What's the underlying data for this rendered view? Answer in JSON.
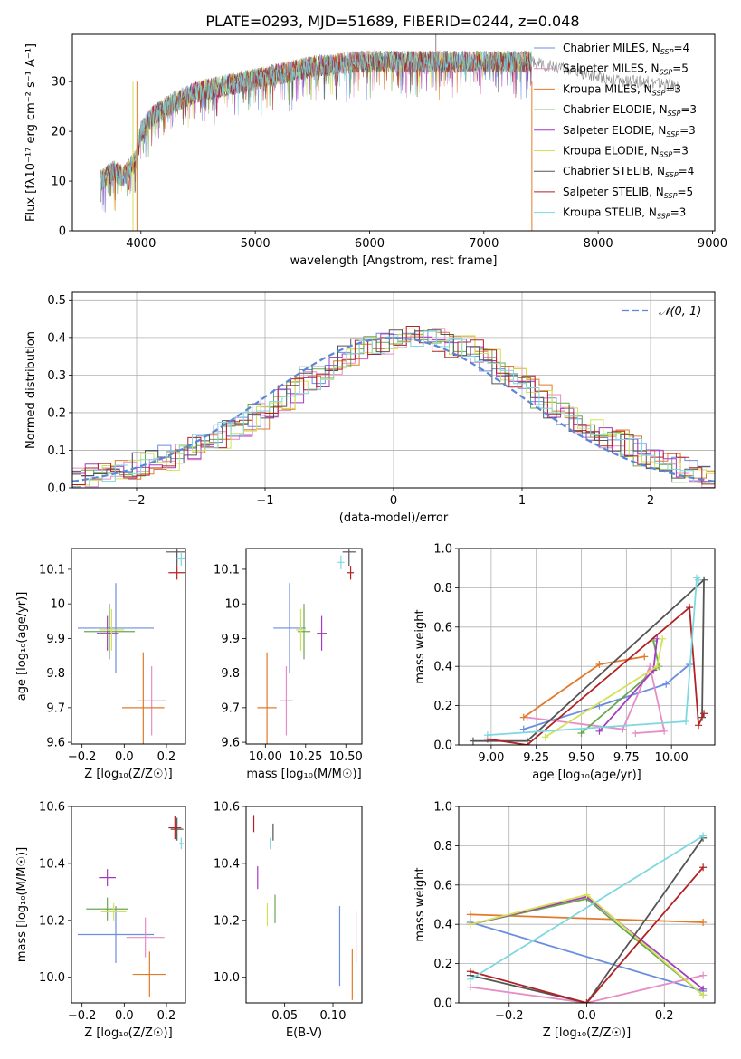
{
  "title": "PLATE=0293, MJD=51689, FIBERID=0244, z=0.048",
  "colors": {
    "Chabrier MILES": "#6a8ee0",
    "Salpeter MILES": "#e68cc6",
    "Kroupa MILES": "#e07b2a",
    "Chabrier ELODIE": "#6aa84f",
    "Salpeter ELODIE": "#a23bbd",
    "Kroupa ELODIE": "#d4e157",
    "Chabrier STELIB": "#555555",
    "Salpeter STELIB": "#b22222",
    "Kroupa STELIB": "#7fd8e0"
  },
  "chart_data": [
    {
      "type": "line",
      "xlabel": "wavelength [Angstrom, rest frame]",
      "ylabel": "Flux [fλ10⁻¹⁷ erg cm⁻² s⁻¹ A⁻¹]",
      "xlim": [
        3400,
        9020
      ],
      "ylim": [
        0,
        39.5
      ],
      "xticks": [
        4000,
        5000,
        6000,
        7000,
        8000,
        9000
      ],
      "yticks": [
        0,
        10,
        20,
        30
      ],
      "legend": "top-right",
      "legend_entries": [
        "Chabrier MILES, N_SSP=4",
        "Salpeter MILES, N_SSP=5",
        "Kroupa MILES, N_SSP=3",
        "Chabrier ELODIE, N_SSP=3",
        "Salpeter ELODIE, N_SSP=3",
        "Kroupa ELODIE, N_SSP=3",
        "Chabrier STELIB, N_SSP=4",
        "Salpeter STELIB, N_SSP=5",
        "Kroupa STELIB, N_SSP=3"
      ],
      "spectrum_trend": {
        "x": [
          3650,
          3750,
          3850,
          3950,
          4000,
          4100,
          4300,
          4500,
          4700,
          4900,
          5100,
          5300,
          5500,
          5700,
          5900,
          6100,
          6300,
          6500,
          6700,
          6900,
          7100,
          7300,
          7420
        ],
        "y": [
          10,
          12,
          11,
          14,
          20,
          23,
          26,
          28,
          29,
          30,
          31,
          32,
          33,
          33.5,
          34,
          34,
          34,
          34,
          34,
          34,
          34,
          34,
          34
        ]
      },
      "spectrum_extension": {
        "x": [
          7420,
          7600,
          7800,
          8000,
          8200,
          8400,
          8600,
          8700
        ],
        "y": [
          34,
          33,
          32,
          31,
          30,
          30,
          29.5,
          29
        ]
      },
      "spectrum_spikes": {
        "x": [
          3930,
          3965,
          5300,
          6580,
          6800,
          7420
        ],
        "y": [
          0,
          0,
          24,
          39.5,
          0,
          0
        ]
      },
      "grid": false
    },
    {
      "type": "histogram",
      "xlabel": "(data-model)/error",
      "ylabel": "Normed distribution",
      "xlim": [
        -2.5,
        2.5
      ],
      "ylim": [
        0,
        0.52
      ],
      "xticks": [
        -2,
        -1,
        0,
        1,
        2
      ],
      "yticks": [
        0,
        0.1,
        0.2,
        0.3,
        0.4,
        0.5
      ],
      "legend": "top-right",
      "legend_entry": "𝒩(0, 1)",
      "bin_edges_start": -2.5,
      "bin_width": 0.1,
      "reference": [
        0.02,
        0.03,
        0.03,
        0.04,
        0.05,
        0.06,
        0.07,
        0.08,
        0.09,
        0.11,
        0.13,
        0.14,
        0.16,
        0.17,
        0.19,
        0.21,
        0.24,
        0.26,
        0.29,
        0.3,
        0.33,
        0.35,
        0.37,
        0.38,
        0.39,
        0.4,
        0.4,
        0.4,
        0.39,
        0.38,
        0.37,
        0.36,
        0.34,
        0.31,
        0.29,
        0.27,
        0.24,
        0.22,
        0.2,
        0.18,
        0.16,
        0.14,
        0.12,
        0.11,
        0.09,
        0.07,
        0.06,
        0.05,
        0.04,
        0.03
      ],
      "normal_curve": "N(0,1)",
      "grid": true
    },
    {
      "type": "errorbar",
      "xlabel": "Z [log₁₀(Z/Z☉)]",
      "ylabel": "age  [log₁₀(age/yr)]",
      "xlim": [
        -0.25,
        0.29
      ],
      "ylim": [
        9.595,
        10.16
      ],
      "xticks": [
        -0.2,
        0,
        0.2
      ],
      "xtick_labels": [
        "−0.2",
        "0.0",
        "0.2"
      ],
      "yticks": [
        9.6,
        9.7,
        9.8,
        9.9,
        10.0,
        10.1
      ],
      "points": [
        {
          "model": "Chabrier MILES",
          "x": -0.04,
          "xerr": 0.18,
          "y": 9.93,
          "yerr": 0.13
        },
        {
          "model": "Salpeter MILES",
          "x": 0.13,
          "xerr": 0.07,
          "y": 9.72,
          "yerr": 0.1
        },
        {
          "model": "Kroupa MILES",
          "x": 0.09,
          "xerr": 0.1,
          "y": 9.7,
          "yerr": 0.16
        },
        {
          "model": "Chabrier ELODIE",
          "x": -0.07,
          "xerr": 0.12,
          "y": 9.92,
          "yerr": 0.08
        },
        {
          "model": "Salpeter ELODIE",
          "x": -0.08,
          "xerr": 0.05,
          "y": 9.915,
          "yerr": 0.05
        },
        {
          "model": "Kroupa ELODIE",
          "x": -0.06,
          "xerr": 0.06,
          "y": 9.925,
          "yerr": 0.06
        },
        {
          "model": "Chabrier STELIB",
          "x": 0.25,
          "xerr": 0.05,
          "y": 10.15,
          "yerr": 0.04
        },
        {
          "model": "Salpeter STELIB",
          "x": 0.25,
          "xerr": 0.04,
          "y": 10.09,
          "yerr": 0.02
        },
        {
          "model": "Kroupa STELIB",
          "x": 0.27,
          "xerr": 0.02,
          "y": 10.13,
          "yerr": 0.02
        }
      ]
    },
    {
      "type": "errorbar",
      "xlabel": "mass [log₁₀(M/M☉)]",
      "ylabel": "",
      "xlim": [
        9.88,
        10.6
      ],
      "ylim": [
        9.595,
        10.16
      ],
      "xticks": [
        10.0,
        10.25,
        10.5
      ],
      "xtick_labels": [
        "10.00",
        "10.25",
        "10.50"
      ],
      "yticks": [
        9.6,
        9.7,
        9.8,
        9.9,
        10.0,
        10.1
      ],
      "points": [
        {
          "model": "Chabrier MILES",
          "x": 10.15,
          "xerr": 0.1,
          "y": 9.93,
          "yerr": 0.13
        },
        {
          "model": "Salpeter MILES",
          "x": 10.13,
          "xerr": 0.04,
          "y": 9.72,
          "yerr": 0.1
        },
        {
          "model": "Kroupa MILES",
          "x": 10.01,
          "xerr": 0.06,
          "y": 9.7,
          "yerr": 0.16
        },
        {
          "model": "Chabrier ELODIE",
          "x": 10.24,
          "xerr": 0.04,
          "y": 9.92,
          "yerr": 0.08
        },
        {
          "model": "Salpeter ELODIE",
          "x": 10.35,
          "xerr": 0.03,
          "y": 9.915,
          "yerr": 0.05
        },
        {
          "model": "Kroupa ELODIE",
          "x": 10.22,
          "xerr": 0.03,
          "y": 9.925,
          "yerr": 0.06
        },
        {
          "model": "Chabrier STELIB",
          "x": 10.52,
          "xerr": 0.04,
          "y": 10.15,
          "yerr": 0.04
        },
        {
          "model": "Salpeter STELIB",
          "x": 10.53,
          "xerr": 0.02,
          "y": 10.09,
          "yerr": 0.02
        },
        {
          "model": "Kroupa STELIB",
          "x": 10.47,
          "xerr": 0.02,
          "y": 10.12,
          "yerr": 0.02
        }
      ]
    },
    {
      "type": "line",
      "xlabel": "age  [log₁₀(age/yr)]",
      "ylabel": "mass weight",
      "xlim": [
        8.82,
        10.24
      ],
      "ylim": [
        0,
        1.0
      ],
      "xticks": [
        9.0,
        9.25,
        9.5,
        9.75,
        10.0
      ],
      "xtick_labels": [
        "9.00",
        "9.25",
        "9.50",
        "9.75",
        "10.00"
      ],
      "yticks": [
        0,
        0.2,
        0.4,
        0.6,
        0.8,
        1.0
      ],
      "grid": true,
      "series": [
        {
          "model": "Chabrier MILES",
          "x": [
            9.18,
            9.6,
            9.97,
            10.1
          ],
          "y": [
            0.08,
            0.2,
            0.31,
            0.41
          ]
        },
        {
          "model": "Salpeter MILES",
          "x": [
            9.2,
            9.73,
            9.88,
            9.96,
            9.8
          ],
          "y": [
            0.14,
            0.08,
            0.4,
            0.07,
            0.06
          ]
        },
        {
          "model": "Kroupa MILES",
          "x": [
            9.18,
            9.6,
            9.85
          ],
          "y": [
            0.14,
            0.41,
            0.45
          ]
        },
        {
          "model": "Chabrier ELODIE",
          "x": [
            9.5,
            9.93,
            9.9
          ],
          "y": [
            0.06,
            0.4,
            0.53
          ]
        },
        {
          "model": "Salpeter ELODIE",
          "x": [
            9.6,
            9.9,
            9.92
          ],
          "y": [
            0.07,
            0.38,
            0.54
          ]
        },
        {
          "model": "Kroupa ELODIE",
          "x": [
            9.3,
            9.92,
            9.95
          ],
          "y": [
            0.04,
            0.4,
            0.54
          ]
        },
        {
          "model": "Chabrier STELIB",
          "x": [
            8.9,
            9.2,
            10.18,
            10.17
          ],
          "y": [
            0.02,
            0.02,
            0.84,
            0.14
          ]
        },
        {
          "model": "Salpeter STELIB",
          "x": [
            8.98,
            9.2,
            10.1,
            10.15,
            10.18
          ],
          "y": [
            0.03,
            0.0,
            0.7,
            0.1,
            0.16
          ]
        },
        {
          "model": "Kroupa STELIB",
          "x": [
            8.98,
            10.08,
            10.14,
            10.15
          ],
          "y": [
            0.05,
            0.12,
            0.85,
            0.84
          ]
        }
      ]
    },
    {
      "type": "errorbar",
      "xlabel": "Z [log₁₀(Z/Z☉)]",
      "ylabel": "mass [log₁₀(M/M☉)]",
      "xlim": [
        -0.25,
        0.29
      ],
      "ylim": [
        9.91,
        10.6
      ],
      "xticks": [
        -0.2,
        0,
        0.2
      ],
      "xtick_labels": [
        "−0.2",
        "0.0",
        "0.2"
      ],
      "yticks": [
        10.0,
        10.2,
        10.4,
        10.6
      ],
      "yticks_labels": [
        "10.0",
        "10.2",
        "10.4",
        "10.6"
      ],
      "points": [
        {
          "model": "Chabrier MILES",
          "x": -0.04,
          "xerr": 0.18,
          "y": 10.15,
          "yerr": 0.1
        },
        {
          "model": "Salpeter MILES",
          "x": 0.1,
          "xerr": 0.09,
          "y": 10.14,
          "yerr": 0.07
        },
        {
          "model": "Kroupa MILES",
          "x": 0.12,
          "xerr": 0.08,
          "y": 10.01,
          "yerr": 0.08
        },
        {
          "model": "Chabrier ELODIE",
          "x": -0.08,
          "xerr": 0.1,
          "y": 10.24,
          "yerr": 0.04
        },
        {
          "model": "Salpeter ELODIE",
          "x": -0.08,
          "xerr": 0.04,
          "y": 10.35,
          "yerr": 0.03
        },
        {
          "model": "Kroupa ELODIE",
          "x": -0.05,
          "xerr": 0.06,
          "y": 10.23,
          "yerr": 0.03
        },
        {
          "model": "Chabrier STELIB",
          "x": 0.25,
          "xerr": 0.03,
          "y": 10.52,
          "yerr": 0.04
        },
        {
          "model": "Salpeter STELIB",
          "x": 0.24,
          "xerr": 0.03,
          "y": 10.525,
          "yerr": 0.04
        },
        {
          "model": "Kroupa STELIB",
          "x": 0.27,
          "xerr": 0.01,
          "y": 10.47,
          "yerr": 0.02
        }
      ]
    },
    {
      "type": "errorbar",
      "xlabel": "E(B-V)",
      "ylabel": "",
      "xlim": [
        0.01,
        0.13
      ],
      "ylim": [
        9.91,
        10.6
      ],
      "xticks": [
        0.05,
        0.1
      ],
      "xtick_labels": [
        "0.05",
        "0.10"
      ],
      "yticks": [
        10.0,
        10.2,
        10.4,
        10.6
      ],
      "yticks_labels": [
        "10.0",
        "10.2",
        "10.4",
        "10.6"
      ],
      "points": [
        {
          "model": "Chabrier MILES",
          "x": 0.107,
          "y": 10.11,
          "yerr": 0.14
        },
        {
          "model": "Salpeter MILES",
          "x": 0.124,
          "y": 10.14,
          "yerr": 0.09
        },
        {
          "model": "Kroupa MILES",
          "x": 0.12,
          "y": 10.01,
          "yerr": 0.09
        },
        {
          "model": "Chabrier ELODIE",
          "x": 0.04,
          "y": 10.24,
          "yerr": 0.05
        },
        {
          "model": "Salpeter ELODIE",
          "x": 0.022,
          "y": 10.35,
          "yerr": 0.04
        },
        {
          "model": "Kroupa ELODIE",
          "x": 0.032,
          "y": 10.22,
          "yerr": 0.04
        },
        {
          "model": "Chabrier STELIB",
          "x": 0.038,
          "y": 10.51,
          "yerr": 0.03
        },
        {
          "model": "Salpeter STELIB",
          "x": 0.018,
          "y": 10.54,
          "yerr": 0.03
        },
        {
          "model": "Kroupa STELIB",
          "x": 0.035,
          "y": 10.47,
          "yerr": 0.02
        }
      ]
    },
    {
      "type": "line",
      "xlabel": "Z [log₁₀(Z/Z☉)]",
      "ylabel": "mass weight",
      "xlim": [
        -0.33,
        0.33
      ],
      "ylim": [
        0,
        1.0
      ],
      "xticks": [
        -0.2,
        0,
        0.2
      ],
      "xtick_labels": [
        "−0.2",
        "0.0",
        "0.2"
      ],
      "yticks": [
        0,
        0.2,
        0.4,
        0.6,
        0.8,
        1.0
      ],
      "grid": true,
      "series": [
        {
          "model": "Chabrier MILES",
          "x": [
            -0.3,
            0.3
          ],
          "y": [
            0.41,
            0.06
          ]
        },
        {
          "model": "Salpeter MILES",
          "x": [
            -0.3,
            0.0,
            0.3
          ],
          "y": [
            0.08,
            0.0,
            0.14
          ]
        },
        {
          "model": "Kroupa MILES",
          "x": [
            -0.3,
            0.3
          ],
          "y": [
            0.45,
            0.41
          ]
        },
        {
          "model": "Chabrier ELODIE",
          "x": [
            -0.3,
            0.0,
            0.3
          ],
          "y": [
            0.4,
            0.53,
            0.04
          ]
        },
        {
          "model": "Salpeter ELODIE",
          "x": [
            -0.3,
            0.0,
            0.3
          ],
          "y": [
            0.4,
            0.54,
            0.07
          ]
        },
        {
          "model": "Kroupa ELODIE",
          "x": [
            -0.3,
            0.0,
            0.3
          ],
          "y": [
            0.4,
            0.55,
            0.04
          ]
        },
        {
          "model": "Chabrier STELIB",
          "x": [
            -0.3,
            0.0,
            0.3
          ],
          "y": [
            0.14,
            0.0,
            0.84
          ]
        },
        {
          "model": "Salpeter STELIB",
          "x": [
            -0.3,
            0.0,
            0.3
          ],
          "y": [
            0.16,
            0.0,
            0.69
          ]
        },
        {
          "model": "Kroupa STELIB",
          "x": [
            -0.3,
            0.3
          ],
          "y": [
            0.12,
            0.85
          ]
        }
      ]
    }
  ]
}
